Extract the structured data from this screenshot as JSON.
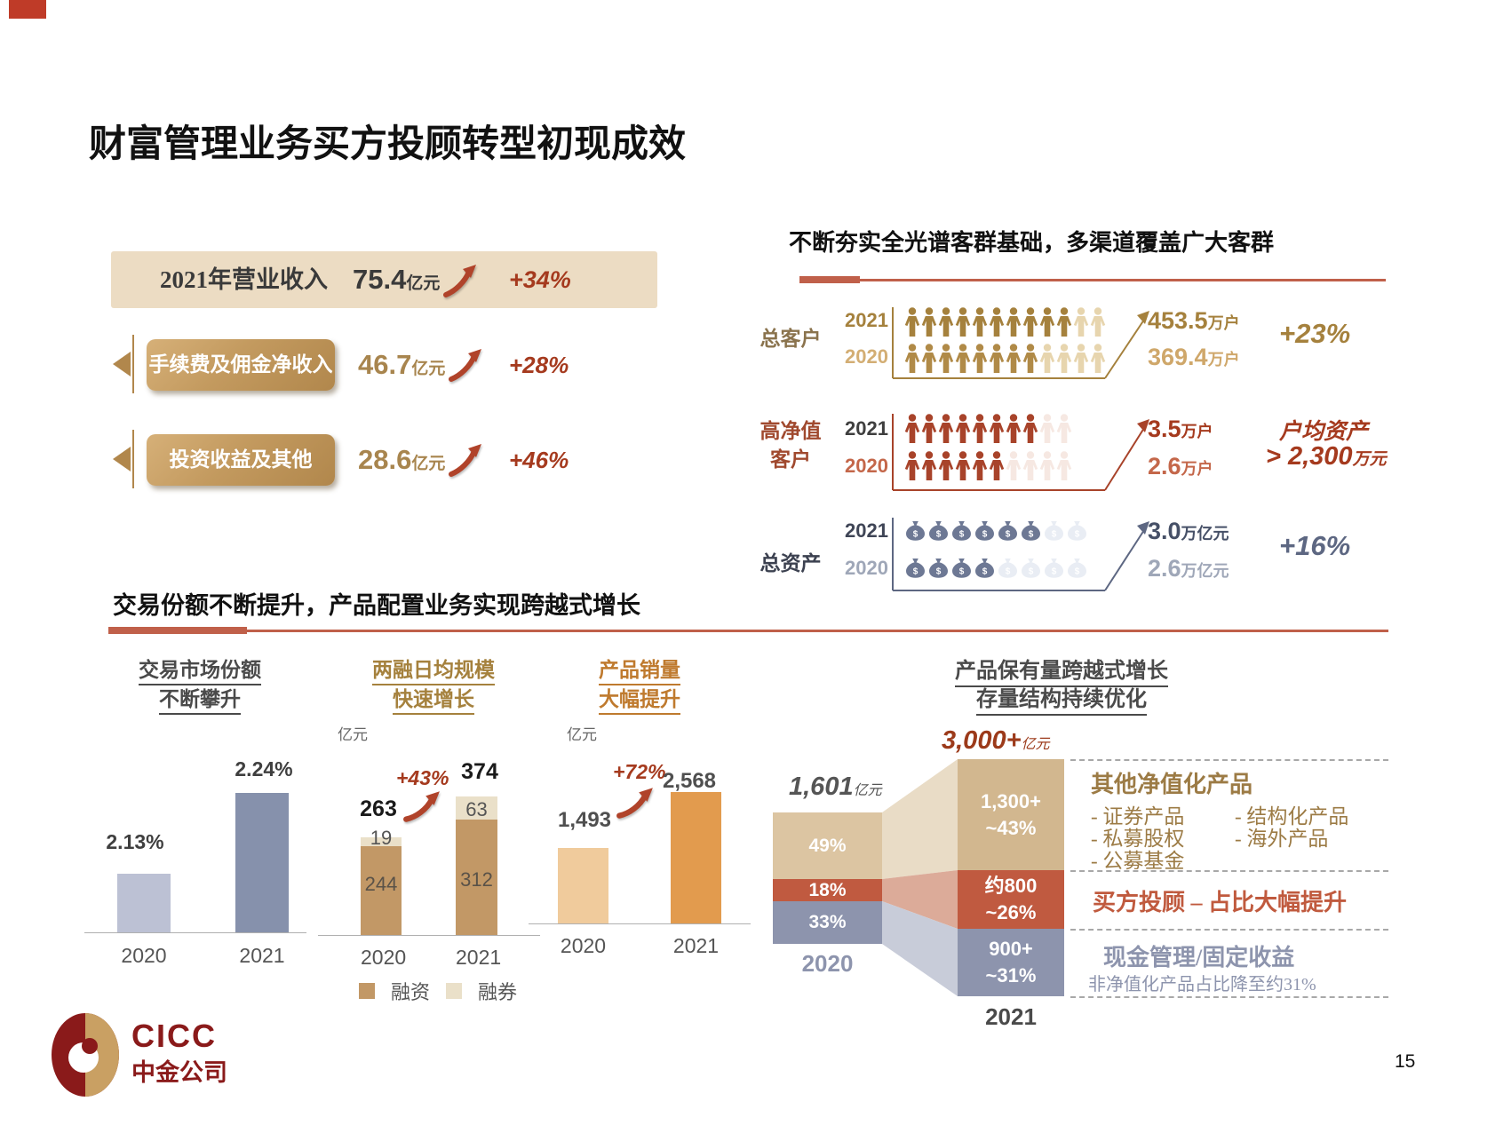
{
  "slide": {
    "title": "财富管理业务买方投顾转型初现成效",
    "page_number": "15"
  },
  "colors": {
    "brand_maroon": "#8a1a1a",
    "brand_gold": "#c9a063",
    "accent_red": "#c0604a",
    "growth_red": "#a53a1e",
    "gold": "#a5813d",
    "high_net_red": "#a8432a",
    "slate": "#8d94ad",
    "tan": "#c29866",
    "cream": "#eae0c9",
    "orange": "#e29b4e",
    "light_orange": "#f0cb9c",
    "beige": "#ecdcc3"
  },
  "revenue_panel": {
    "main_label": "2021年营业收入",
    "main_value": "75.4",
    "main_unit": "亿元",
    "main_growth": "+34%",
    "items": [
      {
        "label": "手续费及佣金净收入",
        "value": "46.7",
        "unit": "亿元",
        "growth": "+28%"
      },
      {
        "label": "投资收益及其他",
        "value": "28.6",
        "unit": "亿元",
        "growth": "+46%"
      }
    ]
  },
  "customer_panel": {
    "header": "不断夯实全光谱客群基础，多渠道覆盖广大客群",
    "rows": [
      {
        "label_line1": "总客户",
        "label_line2": "",
        "year_top": "2021",
        "year_bottom": "2020",
        "value_top": "453.5",
        "unit_top": "万户",
        "value_bottom": "369.4",
        "unit_bottom": "万户",
        "growth": "+23%",
        "icons_top": {
          "type": "person",
          "solid": 10,
          "faded": 2,
          "solid_color": "#a5813d",
          "faded_color": "#e7d5ae"
        },
        "icons_bottom": {
          "type": "person",
          "solid": 8,
          "faded": 4,
          "solid_color": "#b08a47",
          "faded_color": "#e7d5ae"
        }
      },
      {
        "label_line1": "高净值",
        "label_line2": "客户",
        "year_top": "2021",
        "year_bottom": "2020",
        "value_top": "3.5",
        "unit_top": "万户",
        "value_bottom": "2.6",
        "unit_bottom": "万户",
        "note_title": "户均资产",
        "note_value": "> 2,300",
        "note_unit": "万元",
        "icons_top": {
          "type": "person",
          "solid": 8,
          "faded": 2,
          "solid_color": "#a8432a",
          "faded_color": "#f6e8e2"
        },
        "icons_bottom": {
          "type": "person",
          "solid": 6,
          "faded": 4,
          "solid_color": "#a8432a",
          "faded_color": "#f6e8e2"
        }
      },
      {
        "label_line1": "总资产",
        "label_line2": "",
        "year_top": "2021",
        "year_bottom": "2020",
        "value_top": "3.0",
        "unit_top": "万亿元",
        "value_bottom": "2.6",
        "unit_bottom": "万亿元",
        "growth": "+16%",
        "icons_top": {
          "type": "bag",
          "solid": 6,
          "faded": 2,
          "solid_color": "#6d7894",
          "faded_color": "#e9edf4"
        },
        "icons_bottom": {
          "type": "bag",
          "solid": 4,
          "faded": 4,
          "solid_color": "#6d7894",
          "faded_color": "#e9edf4"
        }
      }
    ]
  },
  "trading_header": "交易份额不断提升，产品配置业务实现跨越式增长",
  "chart_data": [
    {
      "type": "bar",
      "title": "交易市场份额不断攀升",
      "title_lines": [
        "交易市场份额",
        "不断攀升"
      ],
      "categories": [
        "2020",
        "2021"
      ],
      "values": [
        2.13,
        2.24
      ],
      "value_labels": [
        "2.13%",
        "2.24%"
      ],
      "unit": "%",
      "bar_colors": [
        "#bcc1d4",
        "#8691ac"
      ]
    },
    {
      "type": "bar",
      "stacked": true,
      "title": "两融日均规模快速增长",
      "title_lines": [
        "两融日均规模",
        "快速增长"
      ],
      "ylabel": "亿元",
      "categories": [
        "2020",
        "2021"
      ],
      "series": [
        {
          "name": "融资",
          "color": "#c29866",
          "values": [
            244,
            312
          ]
        },
        {
          "name": "融券",
          "color": "#eae0c9",
          "values": [
            19,
            63
          ]
        }
      ],
      "totals": [
        "263",
        "374"
      ],
      "growth": "+43%"
    },
    {
      "type": "bar",
      "title": "产品销量大幅提升",
      "title_lines": [
        "产品销量",
        "大幅提升"
      ],
      "ylabel": "亿元",
      "categories": [
        "2020",
        "2021"
      ],
      "values": [
        1493,
        2568
      ],
      "value_labels": [
        "1,493",
        "2,568"
      ],
      "growth": "+72%",
      "bar_colors": [
        "#f0cb9c",
        "#e29b4e"
      ]
    },
    {
      "type": "flow-stacked",
      "title": "产品保有量跨越式增长 存量结构持续优化",
      "title_lines": [
        "产品保有量跨越式增长",
        "存量结构持续优化"
      ],
      "columns": [
        {
          "label": "2020",
          "total": "1,601",
          "total_unit": "亿元",
          "segments": [
            "49%",
            "18%",
            "33%"
          ],
          "segment_colors": [
            "#dcc5a2",
            "#c05a40",
            "#8d94ad"
          ]
        },
        {
          "label": "2021",
          "total": "3,000+",
          "total_unit": "亿元",
          "segments_line1": [
            "1,300+",
            "约800",
            "900+"
          ],
          "segments_line2": [
            "~43%",
            "~26%",
            "~31%"
          ],
          "segment_colors": [
            "#d2b78f",
            "#c05a40",
            "#8d94ad"
          ]
        }
      ],
      "annotations": {
        "band1_title": "其他净值化产品",
        "band1_col1": [
          "- 证券产品",
          "- 私募股权",
          "- 公募基金"
        ],
        "band1_col2": [
          "- 结构化产品",
          "- 海外产品"
        ],
        "band2": "买方投顾 – 占比大幅提升",
        "band3_title": "现金管理/固定收益",
        "band3_sub": "非净值化产品占比降至约31%"
      }
    }
  ],
  "footer": {
    "logo_text": "CICC",
    "logo_subtext": "中金公司"
  }
}
